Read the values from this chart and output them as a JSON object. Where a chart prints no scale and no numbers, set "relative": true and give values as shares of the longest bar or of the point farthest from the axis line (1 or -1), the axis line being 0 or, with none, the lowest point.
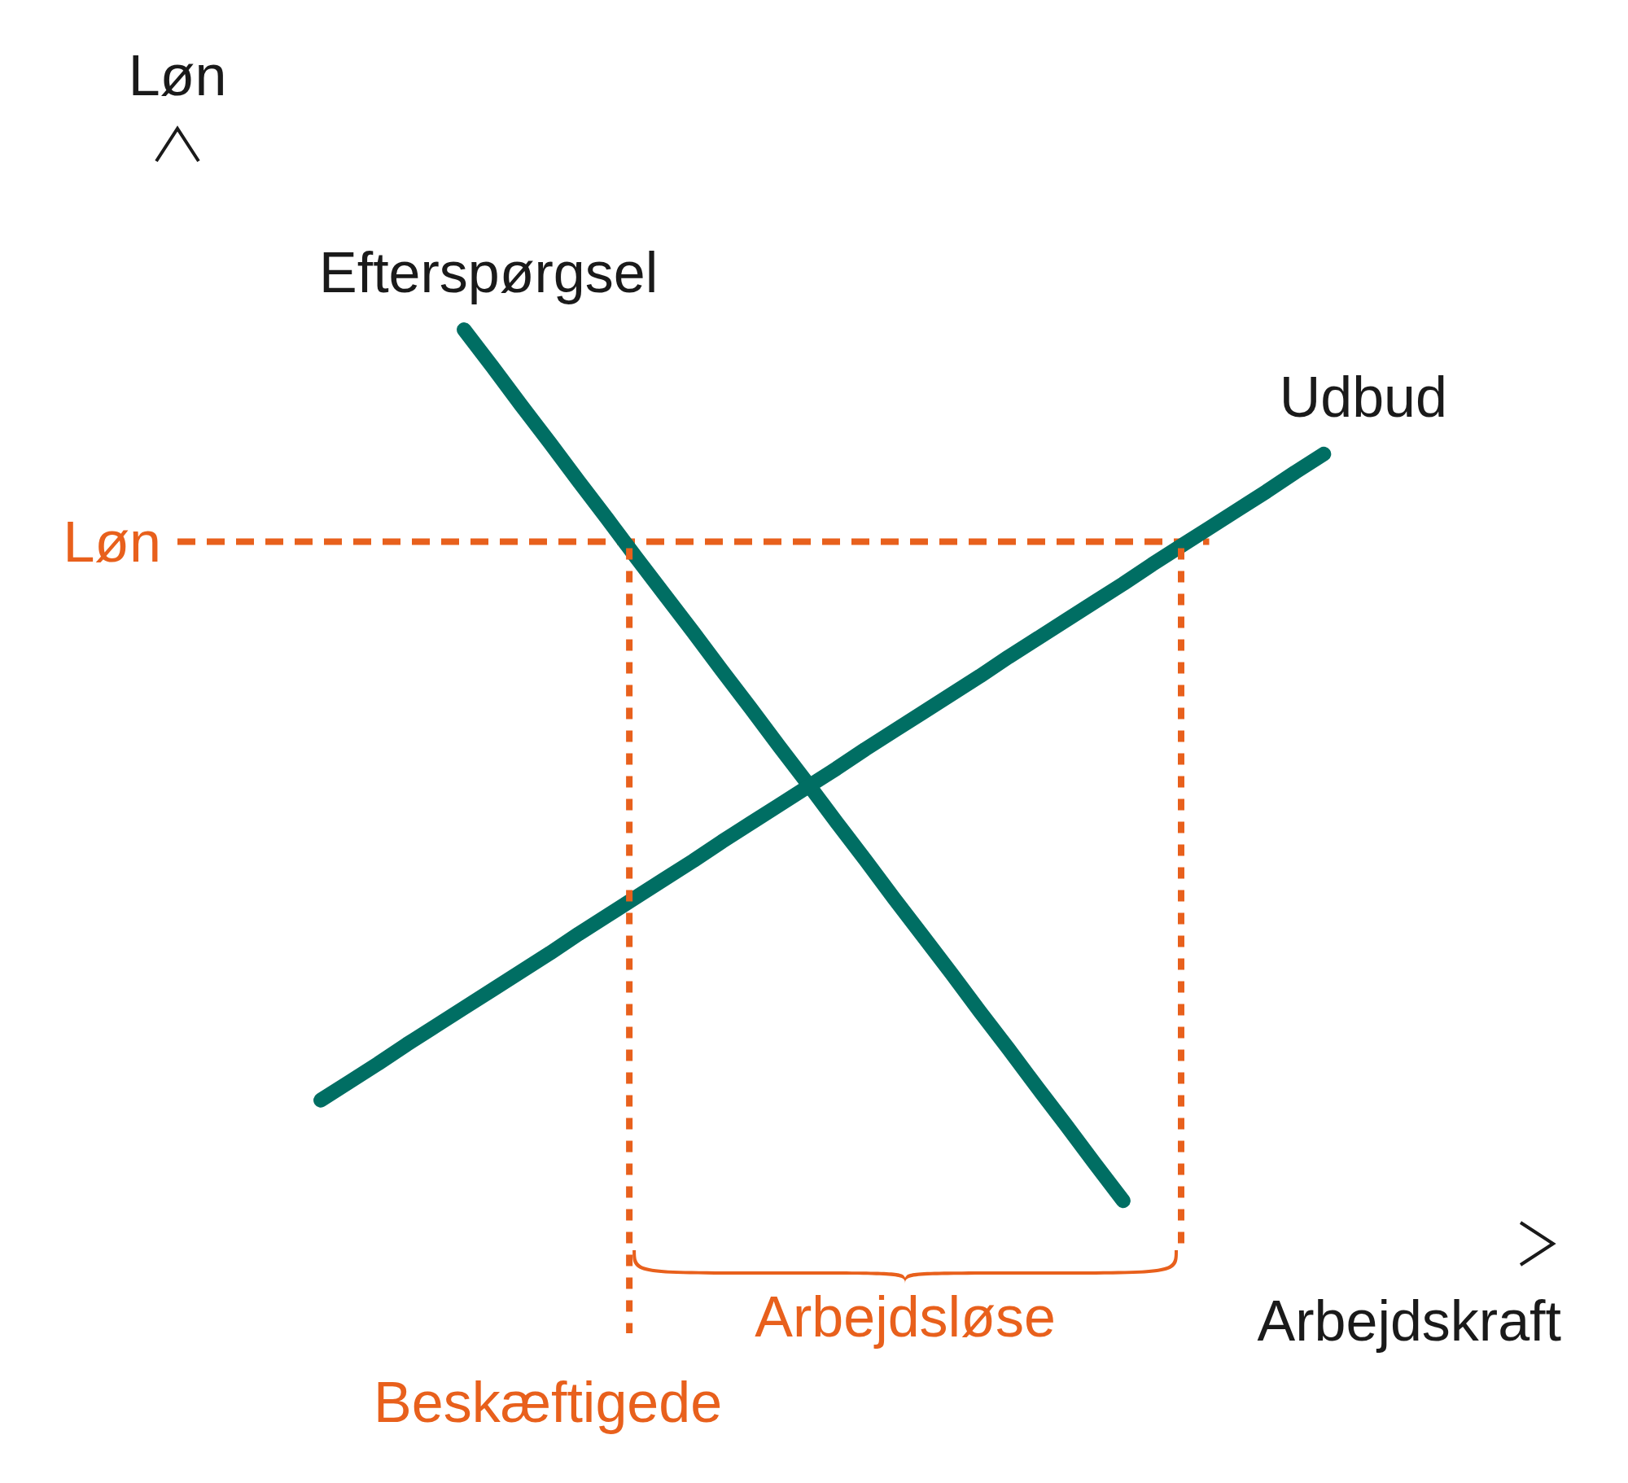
{
  "chart_data": {
    "type": "line",
    "relative": true,
    "xlabel": "Arbejdskraft",
    "ylabel": "Løn",
    "marker": "none",
    "line_style": "solid",
    "categories": [
      null,
      null,
      null,
      null,
      null,
      null,
      null,
      null,
      null,
      null,
      null,
      null,
      null,
      null,
      null,
      null,
      null,
      null,
      null,
      null,
      null,
      null,
      null,
      null,
      null,
      null,
      null,
      null,
      null,
      null,
      null,
      null,
      null,
      null,
      null,
      null,
      null,
      null,
      null,
      null,
      null,
      null,
      null,
      null,
      null,
      null,
      null,
      null,
      null
    ],
    "series": [
      {
        "name": "Efterspørgsel",
        "color": "#006e63",
        "values": [
          null,
          null,
          null,
          null,
          null,
          null,
          null,
          null,
          null,
          null,
          1.0,
          0.959,
          0.917,
          0.876,
          0.834,
          0.793,
          0.751,
          0.71,
          0.669,
          0.627,
          0.586,
          0.544,
          0.503,
          0.461,
          0.42,
          0.378,
          0.337,
          0.296,
          0.254,
          0.213,
          0.171,
          0.13,
          0.088,
          0.047,
          null,
          null,
          null,
          null,
          null,
          null,
          null,
          null,
          null,
          null,
          null,
          null,
          null,
          null,
          null
        ]
      },
      {
        "name": "Udbud",
        "color": "#006e63",
        "values": [
          null,
          null,
          null,
          null,
          null,
          0.157,
          0.177,
          0.197,
          0.218,
          0.238,
          0.258,
          0.278,
          0.298,
          0.318,
          0.339,
          0.359,
          0.379,
          0.399,
          0.419,
          0.44,
          0.46,
          0.48,
          0.5,
          0.52,
          0.541,
          0.561,
          0.581,
          0.601,
          0.621,
          0.642,
          0.662,
          0.682,
          0.702,
          0.722,
          0.743,
          0.763,
          0.783,
          0.803,
          0.823,
          0.844,
          0.864,
          null,
          null,
          null,
          null,
          null,
          null,
          null,
          null
        ]
      }
    ],
    "ref_lines": [
      {
        "axis": "y",
        "value": 0.768,
        "label": "Løn",
        "color": "#e8601c",
        "line_style": "dashed"
      }
    ],
    "annotations": [
      "Arbejdsløse",
      "Beskæftigede"
    ]
  }
}
